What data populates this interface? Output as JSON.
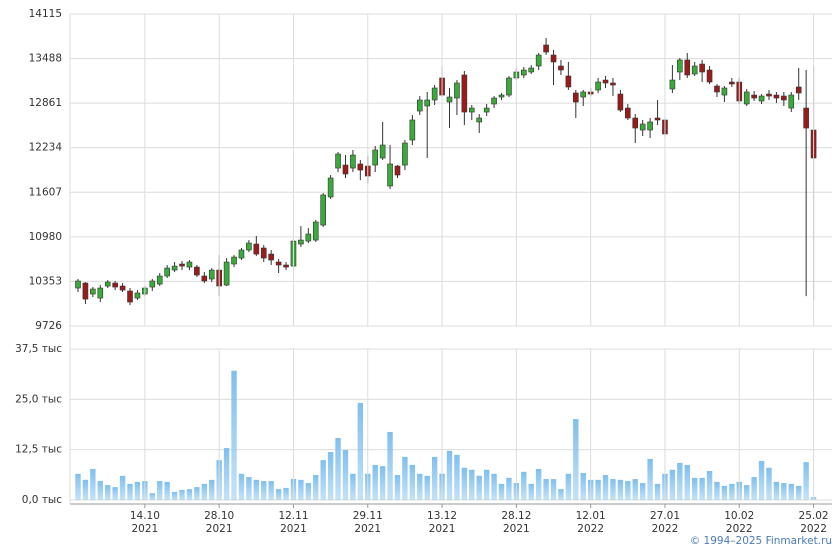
{
  "chart_data": [
    {
      "type": "candlestick",
      "up_color": "#3aaa3a",
      "down_color": "#9b1b1b",
      "ylim": [
        9726,
        14115
      ],
      "yticks": [
        9726,
        10353,
        10980,
        11607,
        12234,
        12861,
        13488,
        14115
      ],
      "grid": true,
      "open": [
        10260,
        10330,
        10176,
        10119,
        10288,
        10330,
        10288,
        10218,
        10119,
        10176,
        10274,
        10316,
        10429,
        10513,
        10598,
        10555,
        10555,
        10429,
        10387,
        10513,
        10302,
        10598,
        10682,
        10795,
        10879,
        10823,
        10738,
        10626,
        10584,
        10569,
        10879,
        10921,
        10935,
        11146,
        11541,
        11948,
        11990,
        11948,
        12005,
        11976,
        11990,
        12089,
        11695,
        11976,
        11990,
        12342,
        12750,
        12821,
        12905,
        13215,
        12877,
        12933,
        13257,
        12736,
        12596,
        12736,
        12849,
        12947,
        12975,
        13215,
        13257,
        13299,
        13383,
        13679,
        13538,
        13383,
        13243,
        13004,
        12947,
        13018,
        13046,
        13186,
        13144,
        12989,
        12792,
        12652,
        12483,
        12483,
        12652,
        12624,
        13060,
        13299,
        13468,
        13271,
        13411,
        13327,
        13102,
        12975,
        13158,
        13158,
        12849,
        12975,
        12891,
        12989,
        12975,
        12961,
        12792,
        13088,
        12792,
        12483
      ],
      "high": [
        10387,
        10344,
        10274,
        10302,
        10372,
        10359,
        10330,
        10260,
        10232,
        10288,
        10387,
        10471,
        10584,
        10626,
        10640,
        10654,
        10584,
        10485,
        10541,
        10724,
        10682,
        10724,
        10823,
        10935,
        10991,
        10865,
        10795,
        10668,
        10626,
        10949,
        11132,
        11104,
        11217,
        11597,
        11850,
        12173,
        12131,
        12202,
        12061,
        12117,
        12258,
        12596,
        12272,
        11990,
        12342,
        12694,
        12961,
        13018,
        13116,
        13383,
        13074,
        13186,
        13313,
        12835,
        12708,
        12849,
        12961,
        13004,
        13243,
        13355,
        13369,
        13397,
        13566,
        13777,
        13609,
        13468,
        13440,
        13046,
        13046,
        13074,
        13215,
        13243,
        13215,
        13046,
        12849,
        12708,
        12624,
        12652,
        12905,
        12666,
        13397,
        13496,
        13566,
        13440,
        13468,
        13383,
        13130,
        13102,
        13215,
        13215,
        13060,
        13032,
        12989,
        13046,
        13018,
        13018,
        13018,
        13355,
        13327,
        13383
      ],
      "low": [
        10204,
        10035,
        10133,
        10063,
        10260,
        10232,
        10204,
        10021,
        10091,
        10147,
        10218,
        10288,
        10401,
        10485,
        10513,
        10513,
        10415,
        10330,
        10344,
        10147,
        10288,
        10555,
        10654,
        10766,
        10710,
        10626,
        10584,
        10471,
        10513,
        10541,
        10837,
        10893,
        10907,
        11118,
        11512,
        11892,
        11808,
        11892,
        11779,
        11737,
        11892,
        12061,
        11653,
        11808,
        11920,
        12272,
        12694,
        12089,
        12835,
        12947,
        12511,
        12694,
        12553,
        12624,
        12441,
        12680,
        12792,
        12905,
        12947,
        13186,
        13215,
        13271,
        13327,
        13538,
        13116,
        13257,
        13046,
        12652,
        12821,
        12961,
        13004,
        13074,
        12961,
        12736,
        12624,
        12300,
        12399,
        12370,
        12553,
        12370,
        13004,
        13186,
        13215,
        13243,
        13158,
        13130,
        12947,
        12877,
        13088,
        12849,
        12821,
        12891,
        12849,
        12905,
        12863,
        12821,
        12736,
        12905,
        10147,
        10091
      ],
      "close": [
        10359,
        10105,
        10246,
        10260,
        10344,
        10274,
        10232,
        10063,
        10190,
        10260,
        10359,
        10429,
        10541,
        10569,
        10569,
        10626,
        10443,
        10359,
        10513,
        10288,
        10626,
        10696,
        10795,
        10893,
        10738,
        10682,
        10654,
        10584,
        10555,
        10921,
        10935,
        11020,
        11189,
        11569,
        11808,
        12145,
        11864,
        12131,
        11920,
        11836,
        12202,
        12272,
        12005,
        11850,
        12300,
        12624,
        12905,
        12905,
        13074,
        12975,
        12947,
        13144,
        12736,
        12792,
        12652,
        12792,
        12933,
        12975,
        13215,
        13299,
        13327,
        13355,
        13538,
        13580,
        13440,
        13327,
        13088,
        12877,
        13018,
        12989,
        13158,
        13144,
        13116,
        12764,
        12652,
        12511,
        12567,
        12596,
        12624,
        12427,
        13186,
        13468,
        13257,
        13383,
        13299,
        13158,
        13018,
        13074,
        13130,
        12891,
        13018,
        12933,
        12961,
        12961,
        12933,
        12905,
        12975,
        13004,
        12511,
        12089
      ]
    },
    {
      "type": "bar",
      "color": "#7fbfee",
      "ylim": [
        0,
        37.5
      ],
      "yticks": [
        {
          "value": 0,
          "label": "0,0 тыс"
        },
        {
          "value": 12.5,
          "label": "12,5 тыс"
        },
        {
          "value": 25,
          "label": "25,0 тыс"
        },
        {
          "value": 37.5,
          "label": "37,5 тыс"
        }
      ],
      "grid": true,
      "categories": [
        null,
        null,
        null,
        null,
        null,
        null,
        null,
        null,
        null,
        "14.10\n2021",
        null,
        null,
        null,
        null,
        null,
        null,
        null,
        null,
        null,
        "28.10\n2021",
        null,
        null,
        null,
        null,
        null,
        null,
        null,
        null,
        null,
        "12.11\n2021",
        null,
        null,
        null,
        null,
        null,
        null,
        null,
        null,
        null,
        "29.11\n2021",
        null,
        null,
        null,
        null,
        null,
        null,
        null,
        null,
        null,
        "13.12\n2021",
        null,
        null,
        null,
        null,
        null,
        null,
        null,
        null,
        null,
        "28.12\n2021",
        null,
        null,
        null,
        null,
        null,
        null,
        null,
        null,
        null,
        "12.01\n2022",
        null,
        null,
        null,
        null,
        null,
        null,
        null,
        null,
        null,
        "27.01\n2022",
        null,
        null,
        null,
        null,
        null,
        null,
        null,
        null,
        null,
        "10.02\n2022",
        null,
        null,
        null,
        null,
        null,
        null,
        null,
        null,
        null,
        "25.02\n2022"
      ],
      "values": [
        6.5,
        5.0,
        7.7,
        4.7,
        3.7,
        3.2,
        6.0,
        4.0,
        4.5,
        4.7,
        1.7,
        4.7,
        4.5,
        2.0,
        2.5,
        2.7,
        3.2,
        4.0,
        5.0,
        9.9,
        12.9,
        32.1,
        6.5,
        5.7,
        5.0,
        4.7,
        4.7,
        2.7,
        3.0,
        5.2,
        5.0,
        4.2,
        6.2,
        9.9,
        11.9,
        15.4,
        12.4,
        6.5,
        24.1,
        6.5,
        8.7,
        8.4,
        16.9,
        6.2,
        10.7,
        8.7,
        6.5,
        6.0,
        10.7,
        6.5,
        12.2,
        11.2,
        8.0,
        7.5,
        6.0,
        7.5,
        6.5,
        4.0,
        5.5,
        4.2,
        7.0,
        4.0,
        7.7,
        5.2,
        5.2,
        2.7,
        6.5,
        20.1,
        6.7,
        5.0,
        5.0,
        6.2,
        5.2,
        5.0,
        4.7,
        5.2,
        4.2,
        10.2,
        4.0,
        6.5,
        7.5,
        9.2,
        8.7,
        5.5,
        5.5,
        7.2,
        4.5,
        3.5,
        4.0,
        4.5,
        3.7,
        5.7,
        9.7,
        8.0,
        4.5,
        4.2,
        4.0,
        3.5,
        9.4,
        0.7
      ]
    }
  ],
  "source": "© 1994–2025 Finmarket.ru"
}
